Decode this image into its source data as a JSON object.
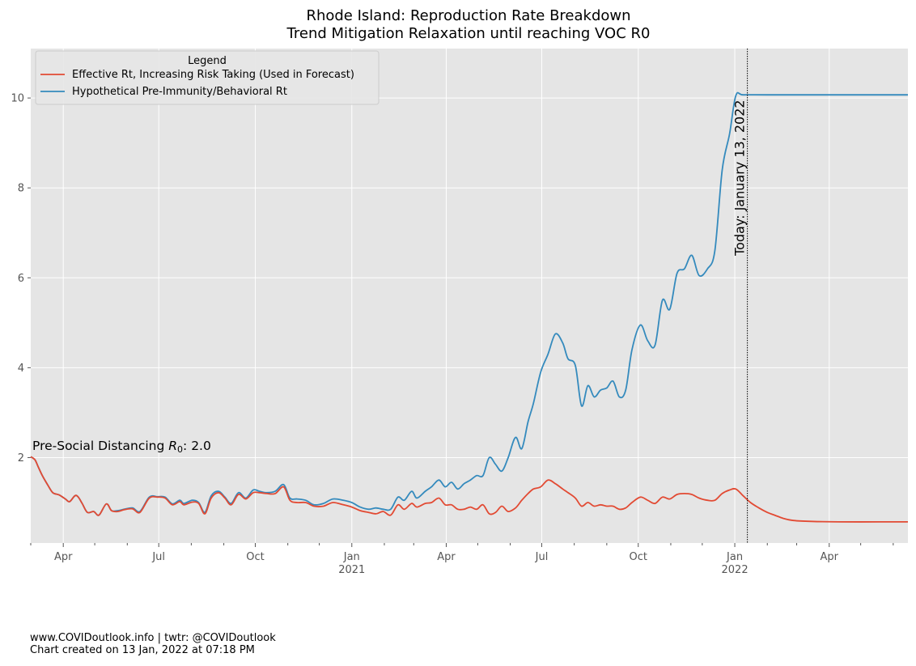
{
  "chart_data": {
    "type": "line",
    "title_line1": "Rhode Island: Reproduction Rate Breakdown",
    "title_line2": "Trend Mitigation Relaxation until reaching VOC R0",
    "xlabel": "",
    "ylabel": "",
    "xlim": [
      "2020-03-01",
      "2022-06-15"
    ],
    "ylim": [
      0.1,
      11.1
    ],
    "grid": true,
    "legend": {
      "title": "Legend",
      "placement": "top-left",
      "entries": [
        {
          "label": "Effective Rt, Increasing Risk Taking (Used in Forecast)",
          "color": "#e24a33"
        },
        {
          "label": "Hypothetical Pre-Immunity/Behavioral Rt",
          "color": "#348abd"
        }
      ]
    },
    "y_ticks": [
      {
        "value": 2,
        "label": "2"
      },
      {
        "value": 4,
        "label": "4"
      },
      {
        "value": 6,
        "label": "6"
      },
      {
        "value": 8,
        "label": "8"
      },
      {
        "value": 10,
        "label": "10"
      }
    ],
    "x_major_ticks": [
      {
        "date": "2020-04-01",
        "label": "Apr",
        "sublabel": ""
      },
      {
        "date": "2020-07-01",
        "label": "Jul",
        "sublabel": ""
      },
      {
        "date": "2020-10-01",
        "label": "Oct",
        "sublabel": ""
      },
      {
        "date": "2021-01-01",
        "label": "Jan",
        "sublabel": "2021"
      },
      {
        "date": "2021-04-01",
        "label": "Apr",
        "sublabel": ""
      },
      {
        "date": "2021-07-01",
        "label": "Jul",
        "sublabel": ""
      },
      {
        "date": "2021-10-01",
        "label": "Oct",
        "sublabel": ""
      },
      {
        "date": "2022-01-01",
        "label": "Jan",
        "sublabel": "2022"
      },
      {
        "date": "2022-04-01",
        "label": "Apr",
        "sublabel": ""
      }
    ],
    "x_minor_ticks": [
      "2020-03-01",
      "2020-05-01",
      "2020-06-01",
      "2020-08-01",
      "2020-09-01",
      "2020-11-01",
      "2020-12-01",
      "2021-02-01",
      "2021-03-01",
      "2021-05-01",
      "2021-06-01",
      "2021-08-01",
      "2021-09-01",
      "2021-11-01",
      "2021-12-01",
      "2022-02-01",
      "2022-03-01",
      "2022-05-01",
      "2022-06-01"
    ],
    "annotations": {
      "today_date": "2022-01-13",
      "today_label": "Today: January 13, 2022",
      "r0_label_prefix": "Pre-Social Distancing ",
      "r0_label_symbol": "R",
      "r0_label_subscript": "0",
      "r0_label_suffix": ": 2.0"
    },
    "series": [
      {
        "name": "Effective Rt, Increasing Risk Taking (Used in Forecast)",
        "color": "#e24a33",
        "points": [
          [
            "2020-03-01",
            2.02
          ],
          [
            "2020-03-05",
            1.95
          ],
          [
            "2020-03-08",
            1.8
          ],
          [
            "2020-03-12",
            1.6
          ],
          [
            "2020-03-17",
            1.4
          ],
          [
            "2020-03-22",
            1.22
          ],
          [
            "2020-03-28",
            1.17
          ],
          [
            "2020-04-03",
            1.08
          ],
          [
            "2020-04-07",
            1.02
          ],
          [
            "2020-04-12",
            1.15
          ],
          [
            "2020-04-15",
            1.13
          ],
          [
            "2020-04-19",
            0.98
          ],
          [
            "2020-04-24",
            0.78
          ],
          [
            "2020-04-30",
            0.8
          ],
          [
            "2020-05-05",
            0.72
          ],
          [
            "2020-05-12",
            0.97
          ],
          [
            "2020-05-17",
            0.82
          ],
          [
            "2020-05-23",
            0.8
          ],
          [
            "2020-05-29",
            0.84
          ],
          [
            "2020-06-06",
            0.86
          ],
          [
            "2020-06-13",
            0.78
          ],
          [
            "2020-06-22",
            1.1
          ],
          [
            "2020-06-30",
            1.12
          ],
          [
            "2020-07-07",
            1.1
          ],
          [
            "2020-07-14",
            0.95
          ],
          [
            "2020-07-21",
            1.02
          ],
          [
            "2020-07-25",
            0.95
          ],
          [
            "2020-08-02",
            1.01
          ],
          [
            "2020-08-08",
            0.98
          ],
          [
            "2020-08-14",
            0.75
          ],
          [
            "2020-08-20",
            1.1
          ],
          [
            "2020-08-27",
            1.22
          ],
          [
            "2020-09-02",
            1.1
          ],
          [
            "2020-09-08",
            0.95
          ],
          [
            "2020-09-15",
            1.18
          ],
          [
            "2020-09-22",
            1.08
          ],
          [
            "2020-09-29",
            1.22
          ],
          [
            "2020-10-05",
            1.22
          ],
          [
            "2020-10-12",
            1.2
          ],
          [
            "2020-10-20",
            1.2
          ],
          [
            "2020-10-28",
            1.35
          ],
          [
            "2020-11-03",
            1.05
          ],
          [
            "2020-11-10",
            1.0
          ],
          [
            "2020-11-18",
            1.0
          ],
          [
            "2020-11-26",
            0.92
          ],
          [
            "2020-12-05",
            0.92
          ],
          [
            "2020-12-14",
            1.0
          ],
          [
            "2020-12-24",
            0.95
          ],
          [
            "2021-01-01",
            0.9
          ],
          [
            "2021-01-09",
            0.82
          ],
          [
            "2021-01-17",
            0.78
          ],
          [
            "2021-01-24",
            0.75
          ],
          [
            "2021-01-31",
            0.8
          ],
          [
            "2021-02-07",
            0.72
          ],
          [
            "2021-02-14",
            0.95
          ],
          [
            "2021-02-20",
            0.85
          ],
          [
            "2021-02-27",
            0.98
          ],
          [
            "2021-03-04",
            0.9
          ],
          [
            "2021-03-12",
            0.98
          ],
          [
            "2021-03-18",
            1.0
          ],
          [
            "2021-03-25",
            1.1
          ],
          [
            "2021-03-31",
            0.95
          ],
          [
            "2021-04-06",
            0.95
          ],
          [
            "2021-04-12",
            0.85
          ],
          [
            "2021-04-18",
            0.85
          ],
          [
            "2021-04-24",
            0.9
          ],
          [
            "2021-04-30",
            0.85
          ],
          [
            "2021-05-06",
            0.95
          ],
          [
            "2021-05-12",
            0.75
          ],
          [
            "2021-05-18",
            0.78
          ],
          [
            "2021-05-24",
            0.92
          ],
          [
            "2021-05-30",
            0.8
          ],
          [
            "2021-06-06",
            0.88
          ],
          [
            "2021-06-12",
            1.05
          ],
          [
            "2021-06-18",
            1.2
          ],
          [
            "2021-06-23",
            1.3
          ],
          [
            "2021-06-30",
            1.35
          ],
          [
            "2021-07-07",
            1.5
          ],
          [
            "2021-07-14",
            1.42
          ],
          [
            "2021-07-21",
            1.3
          ],
          [
            "2021-07-26",
            1.22
          ],
          [
            "2021-08-02",
            1.1
          ],
          [
            "2021-08-08",
            0.92
          ],
          [
            "2021-08-14",
            1.0
          ],
          [
            "2021-08-20",
            0.92
          ],
          [
            "2021-08-26",
            0.95
          ],
          [
            "2021-09-01",
            0.92
          ],
          [
            "2021-09-07",
            0.92
          ],
          [
            "2021-09-13",
            0.85
          ],
          [
            "2021-09-19",
            0.88
          ],
          [
            "2021-09-25",
            1.0
          ],
          [
            "2021-10-03",
            1.12
          ],
          [
            "2021-10-10",
            1.05
          ],
          [
            "2021-10-17",
            0.98
          ],
          [
            "2021-10-24",
            1.12
          ],
          [
            "2021-10-31",
            1.08
          ],
          [
            "2021-11-07",
            1.18
          ],
          [
            "2021-11-14",
            1.2
          ],
          [
            "2021-11-21",
            1.18
          ],
          [
            "2021-11-28",
            1.1
          ],
          [
            "2021-12-06",
            1.05
          ],
          [
            "2021-12-13",
            1.05
          ],
          [
            "2021-12-20",
            1.2
          ],
          [
            "2021-12-27",
            1.28
          ],
          [
            "2022-01-02",
            1.3
          ],
          [
            "2022-01-09",
            1.15
          ],
          [
            "2022-01-16",
            1.0
          ],
          [
            "2022-01-24",
            0.88
          ],
          [
            "2022-02-01",
            0.78
          ],
          [
            "2022-02-08",
            0.72
          ],
          [
            "2022-02-16",
            0.65
          ],
          [
            "2022-02-26",
            0.6
          ],
          [
            "2022-03-15",
            0.58
          ],
          [
            "2022-04-10",
            0.57
          ],
          [
            "2022-05-20",
            0.57
          ],
          [
            "2022-06-15",
            0.57
          ]
        ]
      },
      {
        "name": "Hypothetical Pre-Immunity/Behavioral Rt",
        "color": "#348abd",
        "points": [
          [
            "2020-03-01",
            2.02
          ],
          [
            "2020-03-05",
            1.95
          ],
          [
            "2020-03-08",
            1.8
          ],
          [
            "2020-03-12",
            1.6
          ],
          [
            "2020-03-17",
            1.4
          ],
          [
            "2020-03-22",
            1.22
          ],
          [
            "2020-03-28",
            1.17
          ],
          [
            "2020-04-03",
            1.08
          ],
          [
            "2020-04-07",
            1.02
          ],
          [
            "2020-04-12",
            1.15
          ],
          [
            "2020-04-15",
            1.13
          ],
          [
            "2020-04-19",
            0.98
          ],
          [
            "2020-04-24",
            0.78
          ],
          [
            "2020-04-30",
            0.8
          ],
          [
            "2020-05-05",
            0.72
          ],
          [
            "2020-05-12",
            0.97
          ],
          [
            "2020-05-17",
            0.82
          ],
          [
            "2020-05-23",
            0.82
          ],
          [
            "2020-05-29",
            0.85
          ],
          [
            "2020-06-06",
            0.88
          ],
          [
            "2020-06-13",
            0.8
          ],
          [
            "2020-06-22",
            1.12
          ],
          [
            "2020-06-30",
            1.13
          ],
          [
            "2020-07-07",
            1.12
          ],
          [
            "2020-07-14",
            0.97
          ],
          [
            "2020-07-21",
            1.05
          ],
          [
            "2020-07-25",
            0.98
          ],
          [
            "2020-08-02",
            1.05
          ],
          [
            "2020-08-08",
            1.0
          ],
          [
            "2020-08-14",
            0.78
          ],
          [
            "2020-08-20",
            1.15
          ],
          [
            "2020-08-27",
            1.25
          ],
          [
            "2020-09-02",
            1.12
          ],
          [
            "2020-09-08",
            0.98
          ],
          [
            "2020-09-15",
            1.22
          ],
          [
            "2020-09-22",
            1.1
          ],
          [
            "2020-09-29",
            1.28
          ],
          [
            "2020-10-05",
            1.25
          ],
          [
            "2020-10-12",
            1.22
          ],
          [
            "2020-10-20",
            1.25
          ],
          [
            "2020-10-28",
            1.4
          ],
          [
            "2020-11-03",
            1.1
          ],
          [
            "2020-11-10",
            1.08
          ],
          [
            "2020-11-18",
            1.05
          ],
          [
            "2020-11-26",
            0.95
          ],
          [
            "2020-12-05",
            0.98
          ],
          [
            "2020-12-14",
            1.08
          ],
          [
            "2020-12-24",
            1.05
          ],
          [
            "2021-01-01",
            1.0
          ],
          [
            "2021-01-09",
            0.9
          ],
          [
            "2021-01-17",
            0.85
          ],
          [
            "2021-01-24",
            0.88
          ],
          [
            "2021-01-31",
            0.85
          ],
          [
            "2021-02-07",
            0.85
          ],
          [
            "2021-02-14",
            1.12
          ],
          [
            "2021-02-20",
            1.05
          ],
          [
            "2021-02-27",
            1.25
          ],
          [
            "2021-03-04",
            1.1
          ],
          [
            "2021-03-12",
            1.25
          ],
          [
            "2021-03-18",
            1.35
          ],
          [
            "2021-03-25",
            1.5
          ],
          [
            "2021-03-31",
            1.35
          ],
          [
            "2021-04-06",
            1.45
          ],
          [
            "2021-04-12",
            1.3
          ],
          [
            "2021-04-18",
            1.42
          ],
          [
            "2021-04-24",
            1.5
          ],
          [
            "2021-04-30",
            1.6
          ],
          [
            "2021-05-06",
            1.6
          ],
          [
            "2021-05-12",
            2.0
          ],
          [
            "2021-05-18",
            1.85
          ],
          [
            "2021-05-24",
            1.7
          ],
          [
            "2021-05-30",
            2.0
          ],
          [
            "2021-06-06",
            2.45
          ],
          [
            "2021-06-12",
            2.2
          ],
          [
            "2021-06-18",
            2.8
          ],
          [
            "2021-06-23",
            3.2
          ],
          [
            "2021-06-30",
            3.9
          ],
          [
            "2021-07-07",
            4.3
          ],
          [
            "2021-07-14",
            4.75
          ],
          [
            "2021-07-21",
            4.55
          ],
          [
            "2021-07-26",
            4.2
          ],
          [
            "2021-08-02",
            4.05
          ],
          [
            "2021-08-08",
            3.15
          ],
          [
            "2021-08-14",
            3.6
          ],
          [
            "2021-08-20",
            3.35
          ],
          [
            "2021-08-26",
            3.5
          ],
          [
            "2021-09-01",
            3.55
          ],
          [
            "2021-09-07",
            3.7
          ],
          [
            "2021-09-13",
            3.35
          ],
          [
            "2021-09-19",
            3.5
          ],
          [
            "2021-09-25",
            4.4
          ],
          [
            "2021-10-03",
            4.95
          ],
          [
            "2021-10-10",
            4.6
          ],
          [
            "2021-10-17",
            4.5
          ],
          [
            "2021-10-24",
            5.5
          ],
          [
            "2021-10-31",
            5.3
          ],
          [
            "2021-11-07",
            6.1
          ],
          [
            "2021-11-14",
            6.2
          ],
          [
            "2021-11-21",
            6.5
          ],
          [
            "2021-11-28",
            6.05
          ],
          [
            "2021-12-06",
            6.2
          ],
          [
            "2021-12-13",
            6.6
          ],
          [
            "2021-12-20",
            8.4
          ],
          [
            "2021-12-27",
            9.2
          ],
          [
            "2022-01-02",
            10.05
          ],
          [
            "2022-01-09",
            10.07
          ],
          [
            "2022-02-01",
            10.07
          ],
          [
            "2022-04-01",
            10.07
          ],
          [
            "2022-06-15",
            10.07
          ]
        ]
      }
    ]
  },
  "footer": {
    "line1": "www.COVIDoutlook.info | twtr: @COVIDoutlook",
    "line2": "Chart created on 13 Jan, 2022 at 07:18 PM"
  }
}
